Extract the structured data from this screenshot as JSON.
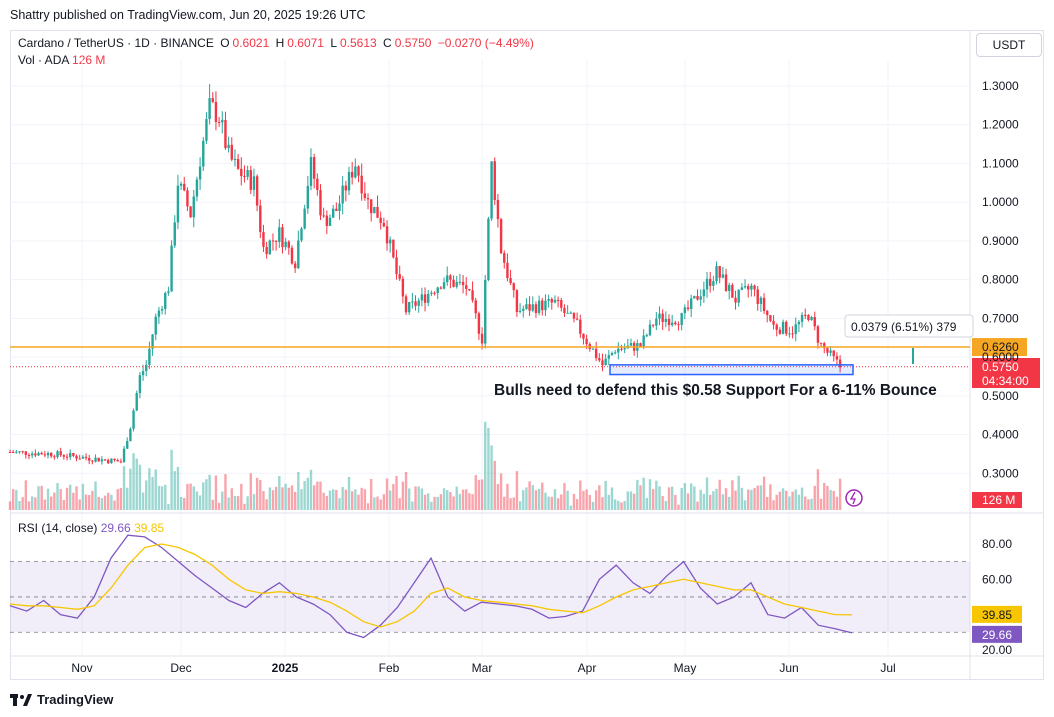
{
  "header": {
    "published_by": "Shattry published on TradingView.com, Jun 20, 2025 19:26 UTC",
    "symbol": "Cardano / TetherUS · 1D · BINANCE",
    "o_label": "O",
    "o_val": "0.6021",
    "h_label": "H",
    "h_val": "0.6071",
    "l_label": "L",
    "l_val": "0.5613",
    "c_label": "C",
    "c_val": "0.5750",
    "change": "−0.0270 (−4.49%)",
    "vol_label": "Vol · ADA",
    "vol_val": "126 M",
    "currency_button": "USDT"
  },
  "rsi": {
    "label": "RSI (14, close)",
    "value_a": "29.66",
    "value_b": "39.85"
  },
  "footer": {
    "brand": "TradingView"
  },
  "colors": {
    "up": "#26a69a",
    "down": "#f23645",
    "support_line": "#f5a623",
    "rsi_line": "#7e57c2",
    "rsi_ma": "#f7c600",
    "box": "#2962ff"
  },
  "chart_data": [
    {
      "type": "candlestick",
      "symbol": "ADA/USDT",
      "interval": "1D",
      "ylim": [
        0.22,
        1.37
      ],
      "y_ticks": [
        "1.3000",
        "1.2000",
        "1.1000",
        "1.0000",
        "0.9000",
        "0.8000",
        "0.7000",
        "0.6000",
        "0.5000",
        "0.4000",
        "0.3000"
      ],
      "x_ticks": [
        "Nov",
        "Dec",
        "2025",
        "Feb",
        "Mar",
        "Apr",
        "May",
        "Jun",
        "Jul"
      ],
      "price_labels": {
        "support": "0.6260",
        "last": "0.5750",
        "countdown": "04:34:00",
        "volume": "126 M"
      },
      "measure_label": "0.0379 (6.51%) 379",
      "annotation": "Bulls need to defend this $0.58 Support For a 6-11% Bounce",
      "support_level": 0.626,
      "last_price": 0.575,
      "support_box": [
        0.555,
        0.58
      ],
      "approx_close_path": [
        [
          "2024-10-01",
          0.355
        ],
        [
          "2024-10-15",
          0.35
        ],
        [
          "2024-10-25",
          0.34
        ],
        [
          "2024-11-05",
          0.33
        ],
        [
          "2024-11-08",
          0.42
        ],
        [
          "2024-11-11",
          0.55
        ],
        [
          "2024-11-13",
          0.58
        ],
        [
          "2024-11-16",
          0.7
        ],
        [
          "2024-11-20",
          0.78
        ],
        [
          "2024-11-23",
          1.05
        ],
        [
          "2024-11-27",
          0.97
        ],
        [
          "2024-12-03",
          1.25
        ],
        [
          "2024-12-06",
          1.22
        ],
        [
          "2024-12-09",
          1.12
        ],
        [
          "2024-12-12",
          1.08
        ],
        [
          "2024-12-17",
          1.05
        ],
        [
          "2024-12-20",
          0.88
        ],
        [
          "2024-12-25",
          0.92
        ],
        [
          "2024-12-30",
          0.85
        ],
        [
          "2025-01-04",
          1.1
        ],
        [
          "2025-01-08",
          0.95
        ],
        [
          "2025-01-12",
          0.98
        ],
        [
          "2025-01-18",
          1.1
        ],
        [
          "2025-01-22",
          1.0
        ],
        [
          "2025-01-27",
          0.95
        ],
        [
          "2025-02-01",
          0.78
        ],
        [
          "2025-02-03",
          0.72
        ],
        [
          "2025-02-08",
          0.75
        ],
        [
          "2025-02-15",
          0.8
        ],
        [
          "2025-02-22",
          0.78
        ],
        [
          "2025-02-27",
          0.65
        ],
        [
          "2025-03-02",
          1.1
        ],
        [
          "2025-03-05",
          0.88
        ],
        [
          "2025-03-10",
          0.72
        ],
        [
          "2025-03-15",
          0.73
        ],
        [
          "2025-03-22",
          0.74
        ],
        [
          "2025-03-29",
          0.68
        ],
        [
          "2025-04-06",
          0.58
        ],
        [
          "2025-04-10",
          0.62
        ],
        [
          "2025-04-18",
          0.63
        ],
        [
          "2025-04-23",
          0.7
        ],
        [
          "2025-05-01",
          0.7
        ],
        [
          "2025-05-08",
          0.78
        ],
        [
          "2025-05-12",
          0.82
        ],
        [
          "2025-05-18",
          0.75
        ],
        [
          "2025-05-23",
          0.78
        ],
        [
          "2025-05-30",
          0.68
        ],
        [
          "2025-06-05",
          0.67
        ],
        [
          "2025-06-10",
          0.71
        ],
        [
          "2025-06-14",
          0.63
        ],
        [
          "2025-06-20",
          0.575
        ]
      ]
    },
    {
      "type": "line",
      "title": "RSI (14, close)",
      "ylim": [
        15,
        90
      ],
      "y_ticks": [
        "80.00",
        "60.00",
        "20.00"
      ],
      "price_labels": {
        "rsi": "29.66",
        "rsi_ma": "39.85"
      },
      "bands": [
        30,
        50,
        70
      ],
      "series": [
        {
          "name": "RSI",
          "values": [
            45,
            42,
            48,
            40,
            38,
            50,
            72,
            85,
            84,
            78,
            70,
            62,
            55,
            48,
            44,
            52,
            58,
            50,
            46,
            40,
            30,
            27,
            34,
            44,
            58,
            72,
            50,
            42,
            47,
            46,
            45,
            43,
            38,
            39,
            42,
            60,
            68,
            58,
            52,
            62,
            70,
            55,
            46,
            50,
            58,
            40,
            38,
            44,
            34,
            32,
            29.66
          ]
        },
        {
          "name": "RSI MA",
          "values": [
            46,
            45,
            45,
            44,
            43,
            45,
            55,
            68,
            78,
            80,
            78,
            74,
            68,
            60,
            54,
            52,
            53,
            52,
            50,
            47,
            42,
            36,
            33,
            36,
            42,
            52,
            55,
            50,
            48,
            47,
            46,
            45,
            43,
            42,
            41,
            45,
            50,
            54,
            56,
            58,
            60,
            58,
            56,
            54,
            54,
            50,
            46,
            44,
            42,
            40,
            39.85
          ]
        }
      ]
    }
  ]
}
